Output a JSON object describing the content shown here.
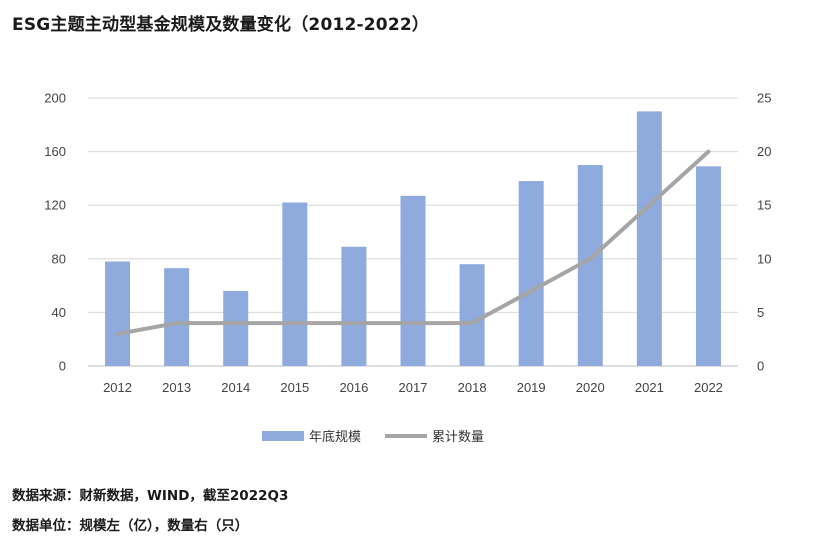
{
  "title": "ESG主题主动型基金规模及数量变化（2012-2022）",
  "notes": {
    "source": "数据来源：财新数据，WIND，截至2022Q3",
    "units": "数据单位：规模左（亿），数量右（只）"
  },
  "chart_data": {
    "type": "bar",
    "categories": [
      "2012",
      "2013",
      "2014",
      "2015",
      "2016",
      "2017",
      "2018",
      "2019",
      "2020",
      "2021",
      "2022"
    ],
    "series": [
      {
        "name": "年底规模",
        "type": "bar",
        "axis": "left",
        "color": "#8faadc",
        "values": [
          78,
          73,
          56,
          122,
          89,
          127,
          76,
          138,
          150,
          190,
          149
        ]
      },
      {
        "name": "累计数量",
        "type": "line",
        "axis": "right",
        "color": "#a5a5a5",
        "values": [
          3,
          4,
          4,
          4,
          4,
          4,
          4,
          7,
          10,
          15,
          20
        ]
      }
    ],
    "y_left": {
      "ylim": [
        0,
        200
      ],
      "ticks": [
        "0",
        "40",
        "80",
        "120",
        "160",
        "200"
      ]
    },
    "y_right": {
      "ylim": [
        0,
        25
      ],
      "ticks": [
        "0",
        "5",
        "10",
        "15",
        "20",
        "25"
      ]
    },
    "grid": true,
    "legend_position": "bottom"
  }
}
